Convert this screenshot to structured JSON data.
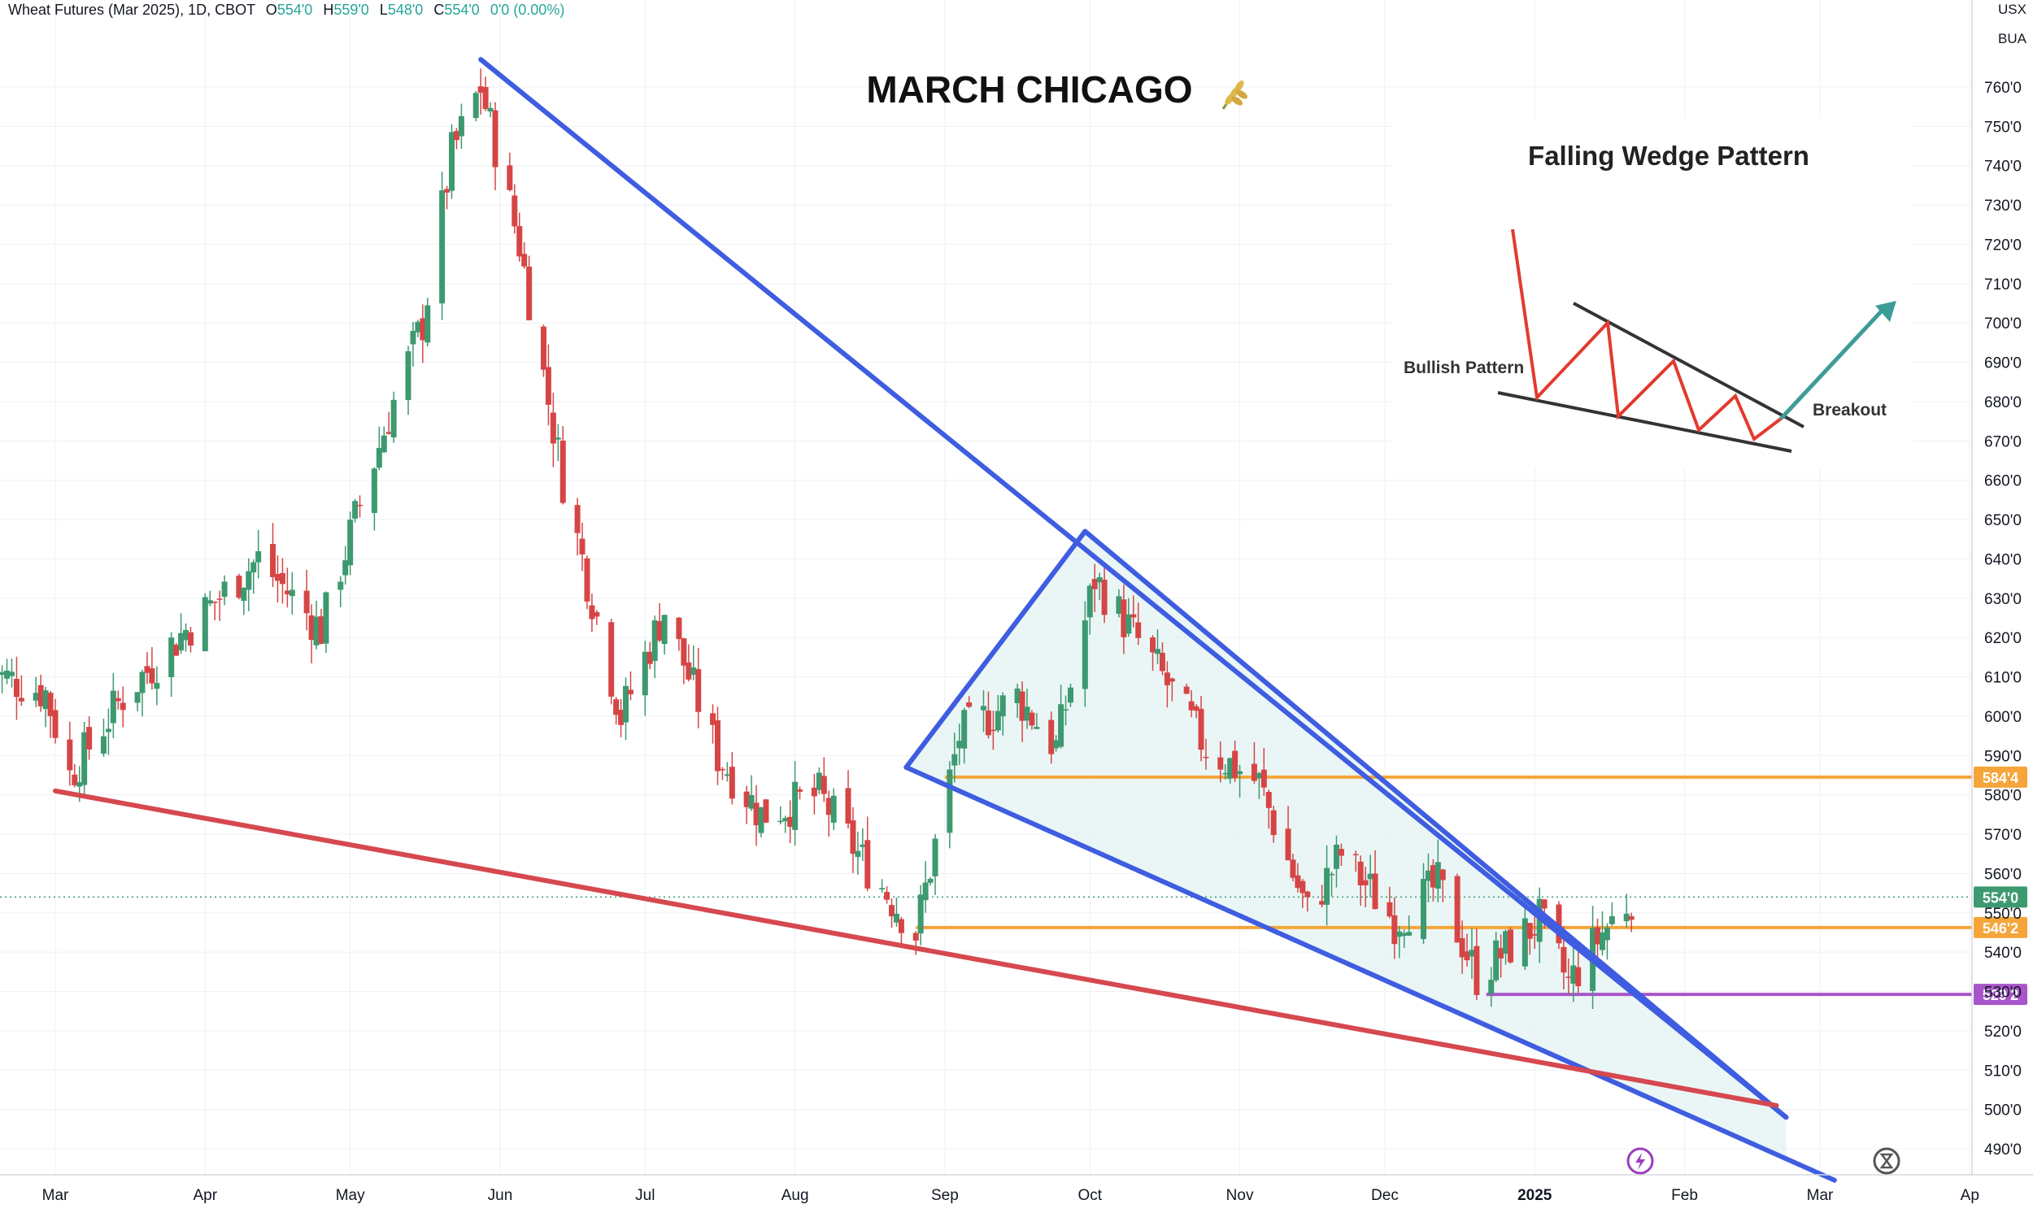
{
  "header": {
    "symbol": "Wheat Futures (Mar 2025), 1D, CBOT",
    "open_label": "O",
    "open_value": "554'0",
    "high_label": "H",
    "high_value": "559'0",
    "low_label": "L",
    "low_value": "548'0",
    "close_label": "C",
    "close_value": "554'0",
    "change": "0'0 (0.00%)"
  },
  "currency_units": [
    "USX",
    "BUA"
  ],
  "title": "MARCH CHICAGO",
  "title_icon": "wheat-icon",
  "inset": {
    "title": "Falling Wedge Pattern",
    "left_label": "Bullish Pattern",
    "right_label": "Breakout"
  },
  "colors": {
    "up": "#3d9970",
    "down": "#d64545",
    "wedge": "#3f5de0",
    "support_line": "#d6484f",
    "orange_level": "#f5a53a",
    "purple_level": "#a855c9",
    "last_price": "#3d9970"
  },
  "chart_data": {
    "type": "candlestick",
    "x_ticks": [
      "Mar",
      "Apr",
      "May",
      "Jun",
      "Jul",
      "Aug",
      "Sep",
      "Oct",
      "Nov",
      "Dec",
      "2025",
      "Feb",
      "Mar",
      "Ap"
    ],
    "y_ticks": [
      "760'0",
      "750'0",
      "740'0",
      "730'0",
      "720'0",
      "710'0",
      "700'0",
      "690'0",
      "680'0",
      "670'0",
      "660'0",
      "650'0",
      "640'0",
      "630'0",
      "620'0",
      "610'0",
      "600'0",
      "590'0",
      "580'0",
      "570'0",
      "560'0",
      "550'0",
      "540'0",
      "530'0",
      "520'0",
      "510'0",
      "500'0",
      "490'0"
    ],
    "ylim": [
      483,
      775
    ],
    "price_waypoints": [
      {
        "date": "2024-02-15",
        "price": 612
      },
      {
        "date": "2024-02-28",
        "price": 606
      },
      {
        "date": "2024-03-04",
        "price": 585
      },
      {
        "date": "2024-03-15",
        "price": 605
      },
      {
        "date": "2024-03-28",
        "price": 622
      },
      {
        "date": "2024-04-12",
        "price": 640
      },
      {
        "date": "2024-04-25",
        "price": 622
      },
      {
        "date": "2024-05-02",
        "price": 650
      },
      {
        "date": "2024-05-10",
        "price": 680
      },
      {
        "date": "2024-05-16",
        "price": 700
      },
      {
        "date": "2024-05-22",
        "price": 743
      },
      {
        "date": "2024-05-28",
        "price": 760
      },
      {
        "date": "2024-06-05",
        "price": 720
      },
      {
        "date": "2024-06-14",
        "price": 660
      },
      {
        "date": "2024-06-26",
        "price": 600
      },
      {
        "date": "2024-07-05",
        "price": 627
      },
      {
        "date": "2024-07-16",
        "price": 590
      },
      {
        "date": "2024-07-25",
        "price": 575
      },
      {
        "date": "2024-08-06",
        "price": 580
      },
      {
        "date": "2024-08-14",
        "price": 565
      },
      {
        "date": "2024-08-26",
        "price": 545
      },
      {
        "date": "2024-09-04",
        "price": 595
      },
      {
        "date": "2024-09-16",
        "price": 605
      },
      {
        "date": "2024-09-24",
        "price": 592
      },
      {
        "date": "2024-10-02",
        "price": 635
      },
      {
        "date": "2024-10-15",
        "price": 612
      },
      {
        "date": "2024-10-25",
        "price": 592
      },
      {
        "date": "2024-11-05",
        "price": 583
      },
      {
        "date": "2024-11-15",
        "price": 550
      },
      {
        "date": "2024-11-22",
        "price": 565
      },
      {
        "date": "2024-12-03",
        "price": 548
      },
      {
        "date": "2024-12-12",
        "price": 557
      },
      {
        "date": "2024-12-20",
        "price": 534
      },
      {
        "date": "2025-01-02",
        "price": 548
      },
      {
        "date": "2025-01-08",
        "price": 532
      },
      {
        "date": "2025-01-15",
        "price": 545
      },
      {
        "date": "2025-01-21",
        "price": 554
      }
    ],
    "horizontal_levels": [
      {
        "price": 584.5,
        "label": "584'4",
        "color": "#f5a53a"
      },
      {
        "price": 546.25,
        "label": "546'2",
        "color": "#f5a53a"
      },
      {
        "price": 529.25,
        "label": "529'2",
        "color": "#a855c9"
      }
    ],
    "last_price": {
      "price": 554,
      "label": "554'0"
    },
    "trendlines": [
      {
        "name": "falling-wedge-upper",
        "from": {
          "date": "2024-05-28",
          "price": 767
        },
        "to": {
          "date": "2025-02-22",
          "price": 498
        }
      },
      {
        "name": "wedge-triangle-top",
        "from": {
          "date": "2024-09-30",
          "price": 647
        },
        "to": {
          "date": "2025-02-22",
          "price": 498
        }
      },
      {
        "name": "wedge-triangle-left",
        "from": {
          "date": "2024-08-24",
          "price": 587
        },
        "to": {
          "date": "2024-09-30",
          "price": 647
        }
      },
      {
        "name": "wedge-lower",
        "from": {
          "date": "2024-08-24",
          "price": 587
        },
        "to": {
          "date": "2025-03-04",
          "price": 482
        }
      },
      {
        "name": "support-line",
        "from": {
          "date": "2024-03-01",
          "price": 581
        },
        "to": {
          "date": "2025-02-20",
          "price": 501
        }
      }
    ]
  }
}
